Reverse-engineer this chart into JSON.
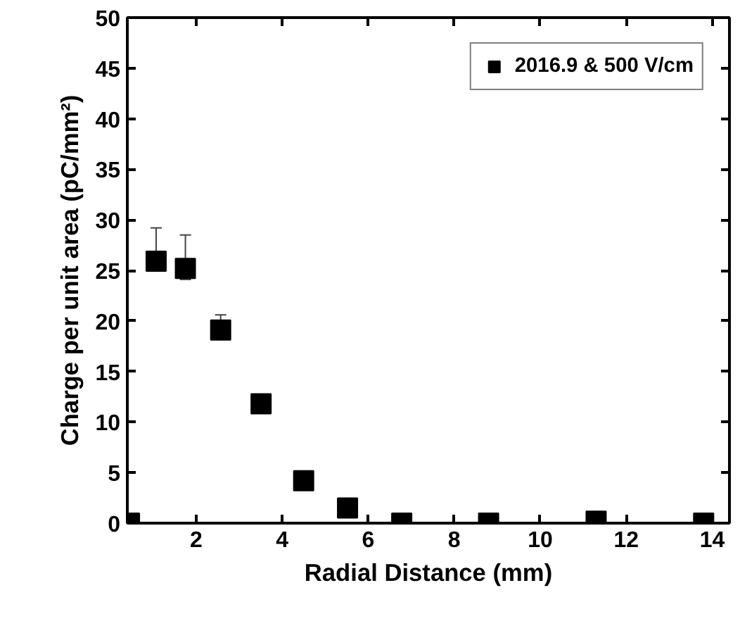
{
  "chart_data": {
    "type": "scatter",
    "xlabel": "Radial Distance (mm)",
    "ylabel": "Charge per unit area (pC/mm²)",
    "xlim": [
      0.4,
      14.4
    ],
    "ylim": [
      0,
      50
    ],
    "xticks": [
      2,
      4,
      6,
      8,
      10,
      12,
      14
    ],
    "yticks": [
      0,
      5,
      10,
      15,
      20,
      25,
      30,
      35,
      40,
      45,
      50
    ],
    "grid": false,
    "legend": "top right",
    "marker": "square",
    "series": [
      {
        "name": "2016.9 & 500 V/cm",
        "color": "#000000",
        "x": [
          0.45,
          1.07,
          1.75,
          2.57,
          3.51,
          4.5,
          5.52,
          6.78,
          8.8,
          11.3,
          13.8
        ],
        "values": [
          0,
          25.9,
          25.2,
          19.1,
          11.8,
          4.2,
          1.5,
          0,
          0,
          0.2,
          0
        ],
        "errors": [
          null,
          [
            25.0,
            29.2
          ],
          [
            24.1,
            28.5
          ],
          [
            19.1,
            20.6
          ],
          [
            11.8,
            12.7
          ],
          null,
          null,
          null,
          null,
          null,
          null
        ]
      }
    ]
  }
}
